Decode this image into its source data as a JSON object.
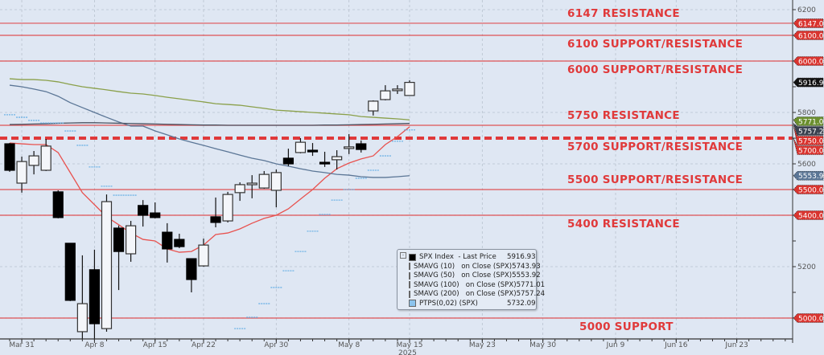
{
  "chart_data": {
    "type": "candlestick",
    "title": "",
    "xlabel": "",
    "ylabel": "",
    "ylim": [
      4915,
      6215
    ],
    "y_axis_side": "right",
    "y_ticks": [
      6200,
      5800,
      5600,
      5200
    ],
    "grid": true,
    "year_label": "2025",
    "x_ticks": [
      {
        "date": "2025-03-31",
        "label": "Mar 31"
      },
      {
        "date": "2025-04-08",
        "label": "Apr 8"
      },
      {
        "date": "2025-04-15",
        "label": "Apr 15"
      },
      {
        "date": "2025-04-22",
        "label": "Apr 22"
      },
      {
        "date": "2025-04-30",
        "label": "Apr 30"
      },
      {
        "date": "2025-05-08",
        "label": "May 8"
      },
      {
        "date": "2025-05-15",
        "label": "May 15"
      },
      {
        "date": "2025-05-23",
        "label": "May 23"
      },
      {
        "date": "2025-05-30",
        "label": "May 30"
      },
      {
        "date": "2025-06-09",
        "label": "Jun 9"
      },
      {
        "date": "2025-06-16",
        "label": "Jun 16"
      },
      {
        "date": "2025-06-23",
        "label": "Jun 23"
      }
    ],
    "axis_end_date": "2025-06-27",
    "candles": {
      "dates": [
        "2025-03-28",
        "2025-03-31",
        "2025-04-01",
        "2025-04-02",
        "2025-04-03",
        "2025-04-04",
        "2025-04-07",
        "2025-04-08",
        "2025-04-09",
        "2025-04-10",
        "2025-04-11",
        "2025-04-14",
        "2025-04-15",
        "2025-04-16",
        "2025-04-17",
        "2025-04-21",
        "2025-04-22",
        "2025-04-23",
        "2025-04-24",
        "2025-04-25",
        "2025-04-28",
        "2025-04-29",
        "2025-04-30",
        "2025-05-01",
        "2025-05-02",
        "2025-05-05",
        "2025-05-06",
        "2025-05-07",
        "2025-05-08",
        "2025-05-09",
        "2025-05-12",
        "2025-05-13",
        "2025-05-14",
        "2025-05-15"
      ],
      "open": [
        5678,
        5525,
        5594,
        5575,
        5491,
        5291,
        4947,
        5188,
        4959,
        5350,
        5250,
        5438,
        5409,
        5334,
        5306,
        5231,
        5203,
        5394,
        5378,
        5488,
        5522,
        5506,
        5497,
        5622,
        5644,
        5653,
        5606,
        5616,
        5663,
        5678,
        5806,
        5850,
        5888,
        5866
      ],
      "high": [
        5681,
        5628,
        5650,
        5697,
        5497,
        5291,
        5244,
        5266,
        5481,
        5360,
        5378,
        5459,
        5450,
        5369,
        5328,
        5231,
        5309,
        5469,
        5491,
        5528,
        5556,
        5572,
        5578,
        5659,
        5700,
        5681,
        5647,
        5653,
        5716,
        5691,
        5847,
        5906,
        5906,
        5925
      ],
      "low": [
        5569,
        5488,
        5559,
        5572,
        5388,
        5066,
        4916,
        4916,
        4947,
        5109,
        5219,
        5356,
        5388,
        5216,
        5272,
        5100,
        5200,
        5353,
        5372,
        5456,
        5466,
        5503,
        5431,
        5591,
        5641,
        5631,
        5588,
        5578,
        5638,
        5644,
        5788,
        5847,
        5872,
        5866
      ],
      "close": [
        5575,
        5609,
        5631,
        5669,
        5391,
        5069,
        5056,
        4978,
        5453,
        5259,
        5359,
        5400,
        5391,
        5269,
        5278,
        5150,
        5284,
        5372,
        5481,
        5519,
        5525,
        5559,
        5566,
        5600,
        5684,
        5647,
        5603,
        5628,
        5666,
        5656,
        5844,
        5884,
        5891,
        5916.93
      ]
    },
    "series": [
      {
        "name": "SMAVG (10)  on Close (SPX)",
        "color": "#e8524f",
        "values": [
          5681,
          5678,
          5675,
          5675,
          5644,
          5566,
          5488,
          5441,
          5394,
          5363,
          5331,
          5306,
          5300,
          5269,
          5256,
          5259,
          5284,
          5325,
          5331,
          5347,
          5369,
          5388,
          5400,
          5425,
          5463,
          5500,
          5544,
          5581,
          5603,
          5619,
          5631,
          5675,
          5706,
          5743.93
        ]
      },
      {
        "name": "SMAVG (50)  on Close (SPX)",
        "color": "#5b7696",
        "values": [
          5906,
          5900,
          5891,
          5881,
          5863,
          5838,
          5819,
          5800,
          5781,
          5763,
          5747,
          5747,
          5728,
          5713,
          5697,
          5684,
          5672,
          5659,
          5647,
          5634,
          5622,
          5613,
          5600,
          5591,
          5581,
          5572,
          5566,
          5559,
          5556,
          5550,
          5547,
          5547,
          5550,
          5553.92
        ]
      },
      {
        "name": "SMAVG (100)  on Close (SPX)",
        "color": "#8aa04a",
        "values": [
          5931,
          5928,
          5928,
          5925,
          5919,
          5909,
          5900,
          5894,
          5888,
          5881,
          5875,
          5872,
          5866,
          5859,
          5853,
          5847,
          5841,
          5834,
          5831,
          5828,
          5822,
          5816,
          5809,
          5806,
          5803,
          5800,
          5797,
          5794,
          5791,
          5784,
          5781,
          5778,
          5775,
          5771.01
        ]
      },
      {
        "name": "SMAVG (200)  on Close (SPX)",
        "color": "#4a5160",
        "values": [
          5753,
          5754,
          5755,
          5756,
          5758,
          5759,
          5760,
          5760,
          5759,
          5758,
          5757,
          5756,
          5755,
          5754,
          5753,
          5752,
          5751,
          5751,
          5750,
          5750,
          5750,
          5750,
          5750,
          5750,
          5750,
          5750,
          5751,
          5751,
          5752,
          5753,
          5754,
          5755,
          5756,
          5757.24
        ]
      }
    ],
    "ptps": {
      "name": "PTPS(0,02) (SPX)",
      "color": "#6fb3e6",
      "values": [
        5791,
        5781,
        5769,
        5759,
        5759,
        5728,
        5672,
        5588,
        5513,
        5478,
        5478,
        null,
        null,
        null,
        null,
        null,
        null,
        null,
        null,
        4959,
        5003,
        5056,
        5119,
        5184,
        5259,
        5338,
        5403,
        5459,
        5500,
        5544,
        5575,
        5631,
        5688,
        5732.09
      ]
    },
    "levels": [
      {
        "value": 6147,
        "label": "6147 RESISTANCE",
        "tag": "6147.00",
        "style": "solid"
      },
      {
        "value": 6100,
        "label": "6100 SUPPORT/RESISTANCE",
        "tag": "6100.00",
        "style": "solid"
      },
      {
        "value": 6000,
        "label": "6000 SUPPORT/RESISTANCE",
        "tag": "6000.00",
        "style": "solid"
      },
      {
        "value": 5750,
        "label": "5750 RESISTANCE",
        "tag": "5750.00",
        "style": "solid"
      },
      {
        "value": 5700,
        "label": "5700 SUPPORT/RESISTANCE",
        "tag": "5700.00",
        "style": "dashed"
      },
      {
        "value": 5500,
        "label": "5500 SUPPORT/RESISTANCE",
        "tag": "5500.00",
        "style": "solid"
      },
      {
        "value": 5400,
        "label": "5400 RESISTANCE",
        "tag": "5400.00",
        "style": "solid"
      },
      {
        "value": 5000,
        "label": "5000 SUPPORT",
        "tag": "5000.00",
        "style": "solid"
      }
    ],
    "level_color": "#e0393a",
    "price_tags": [
      {
        "value": 5771.01,
        "text": "5771.01",
        "color": "#6b8f2e"
      },
      {
        "value": 5757.24,
        "text": "5757.24",
        "color": "#3b4250"
      },
      {
        "value": 5916.93,
        "text": "5916.93",
        "color": "#111111"
      },
      {
        "value": 5553.92,
        "text": "5553.92",
        "color": "#5b7696"
      }
    ]
  },
  "legend": {
    "placement": "bottom-center",
    "items": [
      {
        "name": "SPX Index  - Last Price",
        "value": "5916.93",
        "color": "#000000"
      },
      {
        "name": "SMAVG (10)   on Close (SPX)",
        "value": "5743.93",
        "color": "#e8403c"
      },
      {
        "name": "SMAVG (50)   on Close (SPX)",
        "value": "5553.92",
        "color": "#5b7696"
      },
      {
        "name": "SMAVG (100)   on Close (SPX)",
        "value": "5771.01",
        "color": "#6b8f2e"
      },
      {
        "name": "SMAVG (200)   on Close (SPX)",
        "value": "5757.24",
        "color": "#3b4250"
      },
      {
        "name": "PTPS(0,02) (SPX)",
        "value": "5732.09",
        "color": "#8cc4ee"
      }
    ]
  }
}
